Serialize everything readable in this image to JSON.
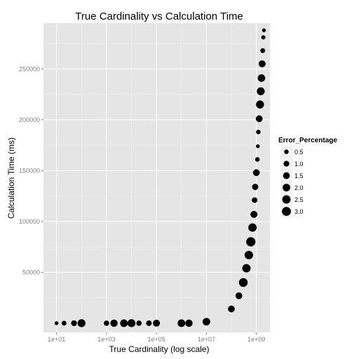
{
  "chart_data": {
    "type": "scatter",
    "title": "True Cardinality vs Calculation Time",
    "xlabel": "True Cardinality (log scale)",
    "ylabel": "Calculation Time (ms)",
    "x_scale": "log10",
    "xlim": [
      3,
      3500000000.0
    ],
    "ylim": [
      -9000,
      295000
    ],
    "x_ticks": [
      10,
      1000,
      100000,
      10000000,
      1000000000
    ],
    "x_tick_labels": [
      "1e+01",
      "1e+03",
      "1e+05",
      "1e+07",
      "1e+09"
    ],
    "y_ticks": [
      50000,
      100000,
      150000,
      200000,
      250000
    ],
    "y_tick_labels": [
      "50000",
      "100000",
      "150000",
      "200000",
      "250000"
    ],
    "grid": true,
    "legend": {
      "title": "Error_Percentage",
      "position": "right",
      "entries": [
        {
          "label": "0.5",
          "value": 0.5
        },
        {
          "label": "1.0",
          "value": 1.0
        },
        {
          "label": "1.5",
          "value": 1.5
        },
        {
          "label": "2.0",
          "value": 2.0
        },
        {
          "label": "2.5",
          "value": 2.5
        },
        {
          "label": "3.0",
          "value": 3.0
        }
      ]
    },
    "points": [
      {
        "x": 10,
        "y": 0,
        "error": 0.3
      },
      {
        "x": 20,
        "y": 0,
        "error": 0.6
      },
      {
        "x": 50,
        "y": 0,
        "error": 1.0
      },
      {
        "x": 100,
        "y": 0,
        "error": 2.2
      },
      {
        "x": 1000,
        "y": 0,
        "error": 0.8
      },
      {
        "x": 2000,
        "y": 0,
        "error": 1.8
      },
      {
        "x": 5000,
        "y": 0,
        "error": 2.0
      },
      {
        "x": 10000,
        "y": 0,
        "error": 2.2
      },
      {
        "x": 20000,
        "y": 0,
        "error": 0.8
      },
      {
        "x": 50000,
        "y": 0,
        "error": 0.9
      },
      {
        "x": 100000,
        "y": 0,
        "error": 1.6
      },
      {
        "x": 1000000,
        "y": 0,
        "error": 2.0
      },
      {
        "x": 2000000,
        "y": 0,
        "error": 1.8
      },
      {
        "x": 10000000,
        "y": 1500,
        "error": 2.0
      },
      {
        "x": 100000000,
        "y": 14000,
        "error": 1.5
      },
      {
        "x": 200000000,
        "y": 27000,
        "error": 1.5
      },
      {
        "x": 300000000,
        "y": 40000,
        "error": 2.8
      },
      {
        "x": 400000000,
        "y": 54000,
        "error": 2.5
      },
      {
        "x": 500000000,
        "y": 67000,
        "error": 2.6
      },
      {
        "x": 600000000,
        "y": 80000,
        "error": 3.2
      },
      {
        "x": 700000000,
        "y": 94000,
        "error": 2.5
      },
      {
        "x": 800000000,
        "y": 107000,
        "error": 1.6
      },
      {
        "x": 850000000,
        "y": 121000,
        "error": 0.9
      },
      {
        "x": 900000000,
        "y": 134000,
        "error": 1.2
      },
      {
        "x": 1000000000,
        "y": 148000,
        "error": 1.5
      },
      {
        "x": 1100000000,
        "y": 161000,
        "error": 0.5
      },
      {
        "x": 1150000000,
        "y": 174000,
        "error": 0.3
      },
      {
        "x": 1200000000,
        "y": 188000,
        "error": 0.5
      },
      {
        "x": 1300000000,
        "y": 201000,
        "error": 1.5
      },
      {
        "x": 1400000000,
        "y": 215000,
        "error": 2.3
      },
      {
        "x": 1500000000,
        "y": 228000,
        "error": 2.2
      },
      {
        "x": 1600000000,
        "y": 241000,
        "error": 1.9
      },
      {
        "x": 1700000000,
        "y": 255000,
        "error": 1.6
      },
      {
        "x": 1800000000,
        "y": 268000,
        "error": 0.6
      },
      {
        "x": 1900000000,
        "y": 281000,
        "error": 0.4
      },
      {
        "x": 2000000000,
        "y": 288000,
        "error": 0.3
      }
    ]
  }
}
